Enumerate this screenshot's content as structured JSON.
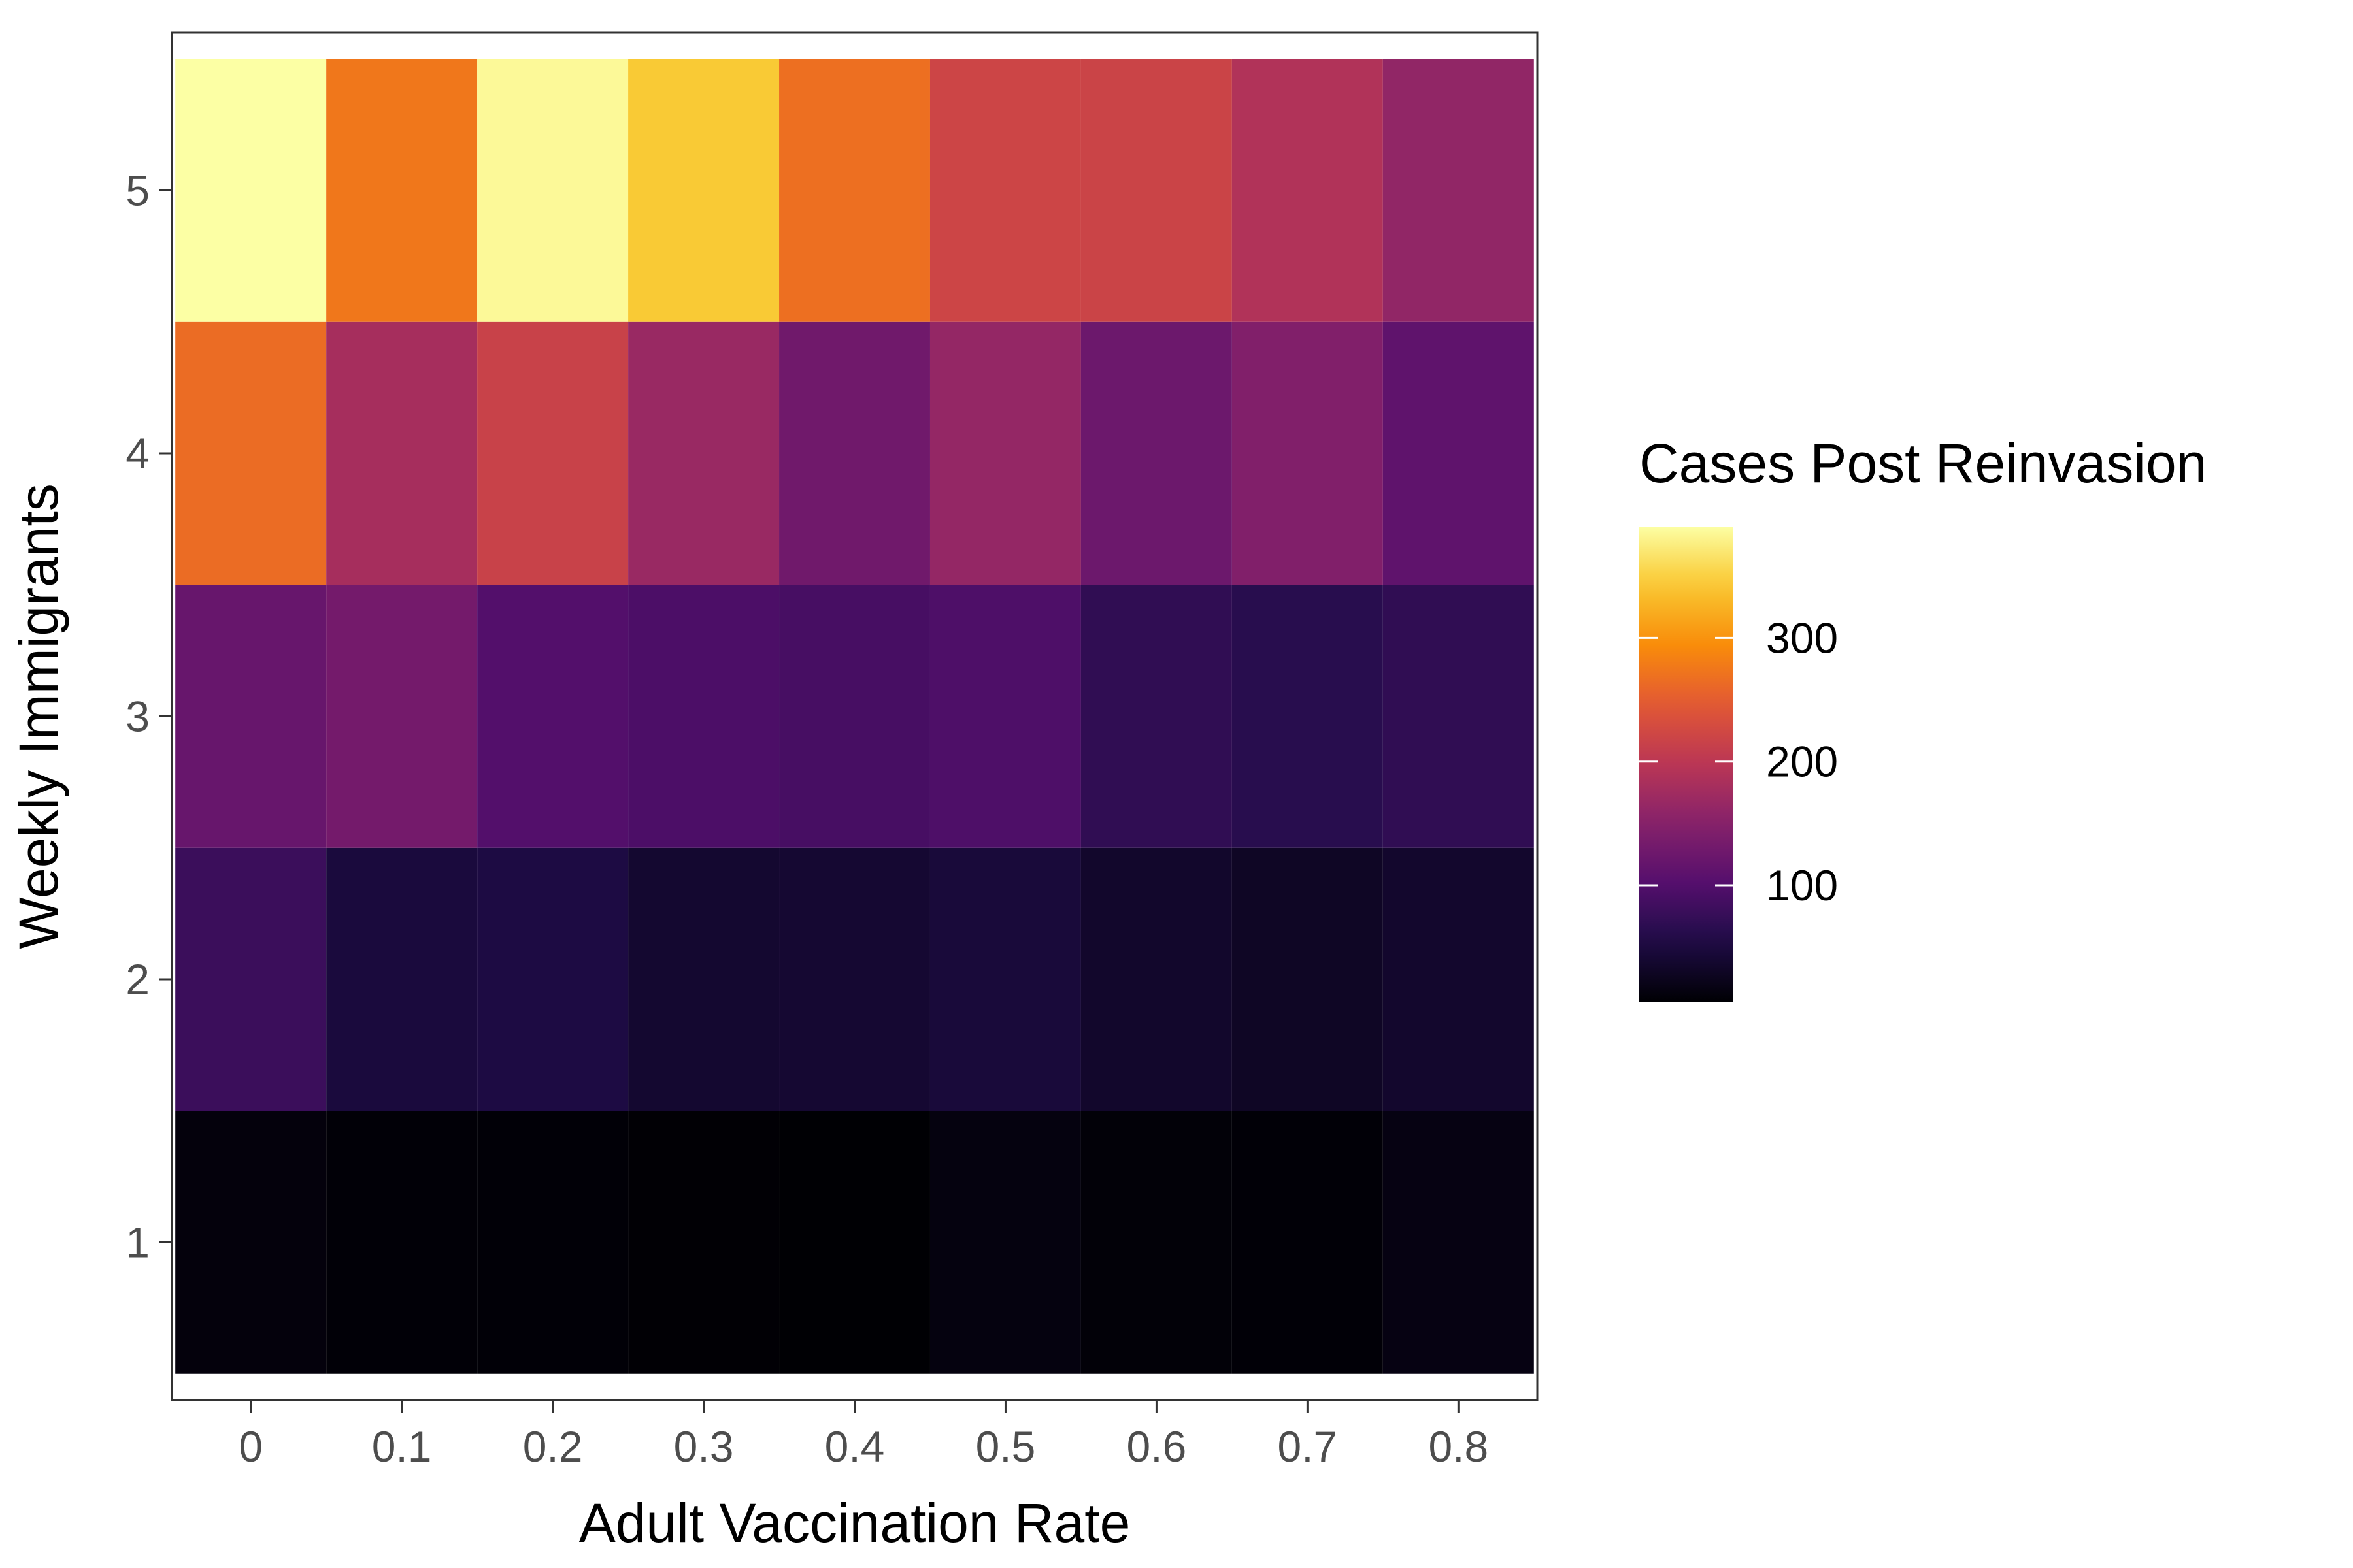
{
  "chart_data": {
    "type": "heatmap",
    "x": [
      "0",
      "0.1",
      "0.2",
      "0.3",
      "0.4",
      "0.5",
      "0.6",
      "0.7",
      "0.8"
    ],
    "y": [
      "1",
      "2",
      "3",
      "4",
      "5"
    ],
    "values": [
      [
        12,
        8,
        8,
        7,
        6,
        14,
        9,
        8,
        16
      ],
      [
        80,
        48,
        52,
        38,
        40,
        46,
        35,
        30,
        36
      ],
      [
        120,
        132,
        100,
        94,
        90,
        96,
        70,
        64,
        70
      ],
      [
        265,
        180,
        215,
        168,
        128,
        163,
        125,
        145,
        112
      ],
      [
        390,
        275,
        385,
        345,
        268,
        220,
        218,
        190,
        160
      ]
    ],
    "xlabel": "Adult Vaccination Rate",
    "ylabel": "Weekly Immigrants",
    "legend": {
      "title": "Cases Post Reinvasion",
      "ticks": [
        100,
        200,
        300
      ],
      "range": [
        6,
        390
      ],
      "colormap": "inferno",
      "position": "right"
    },
    "grid": false
  }
}
